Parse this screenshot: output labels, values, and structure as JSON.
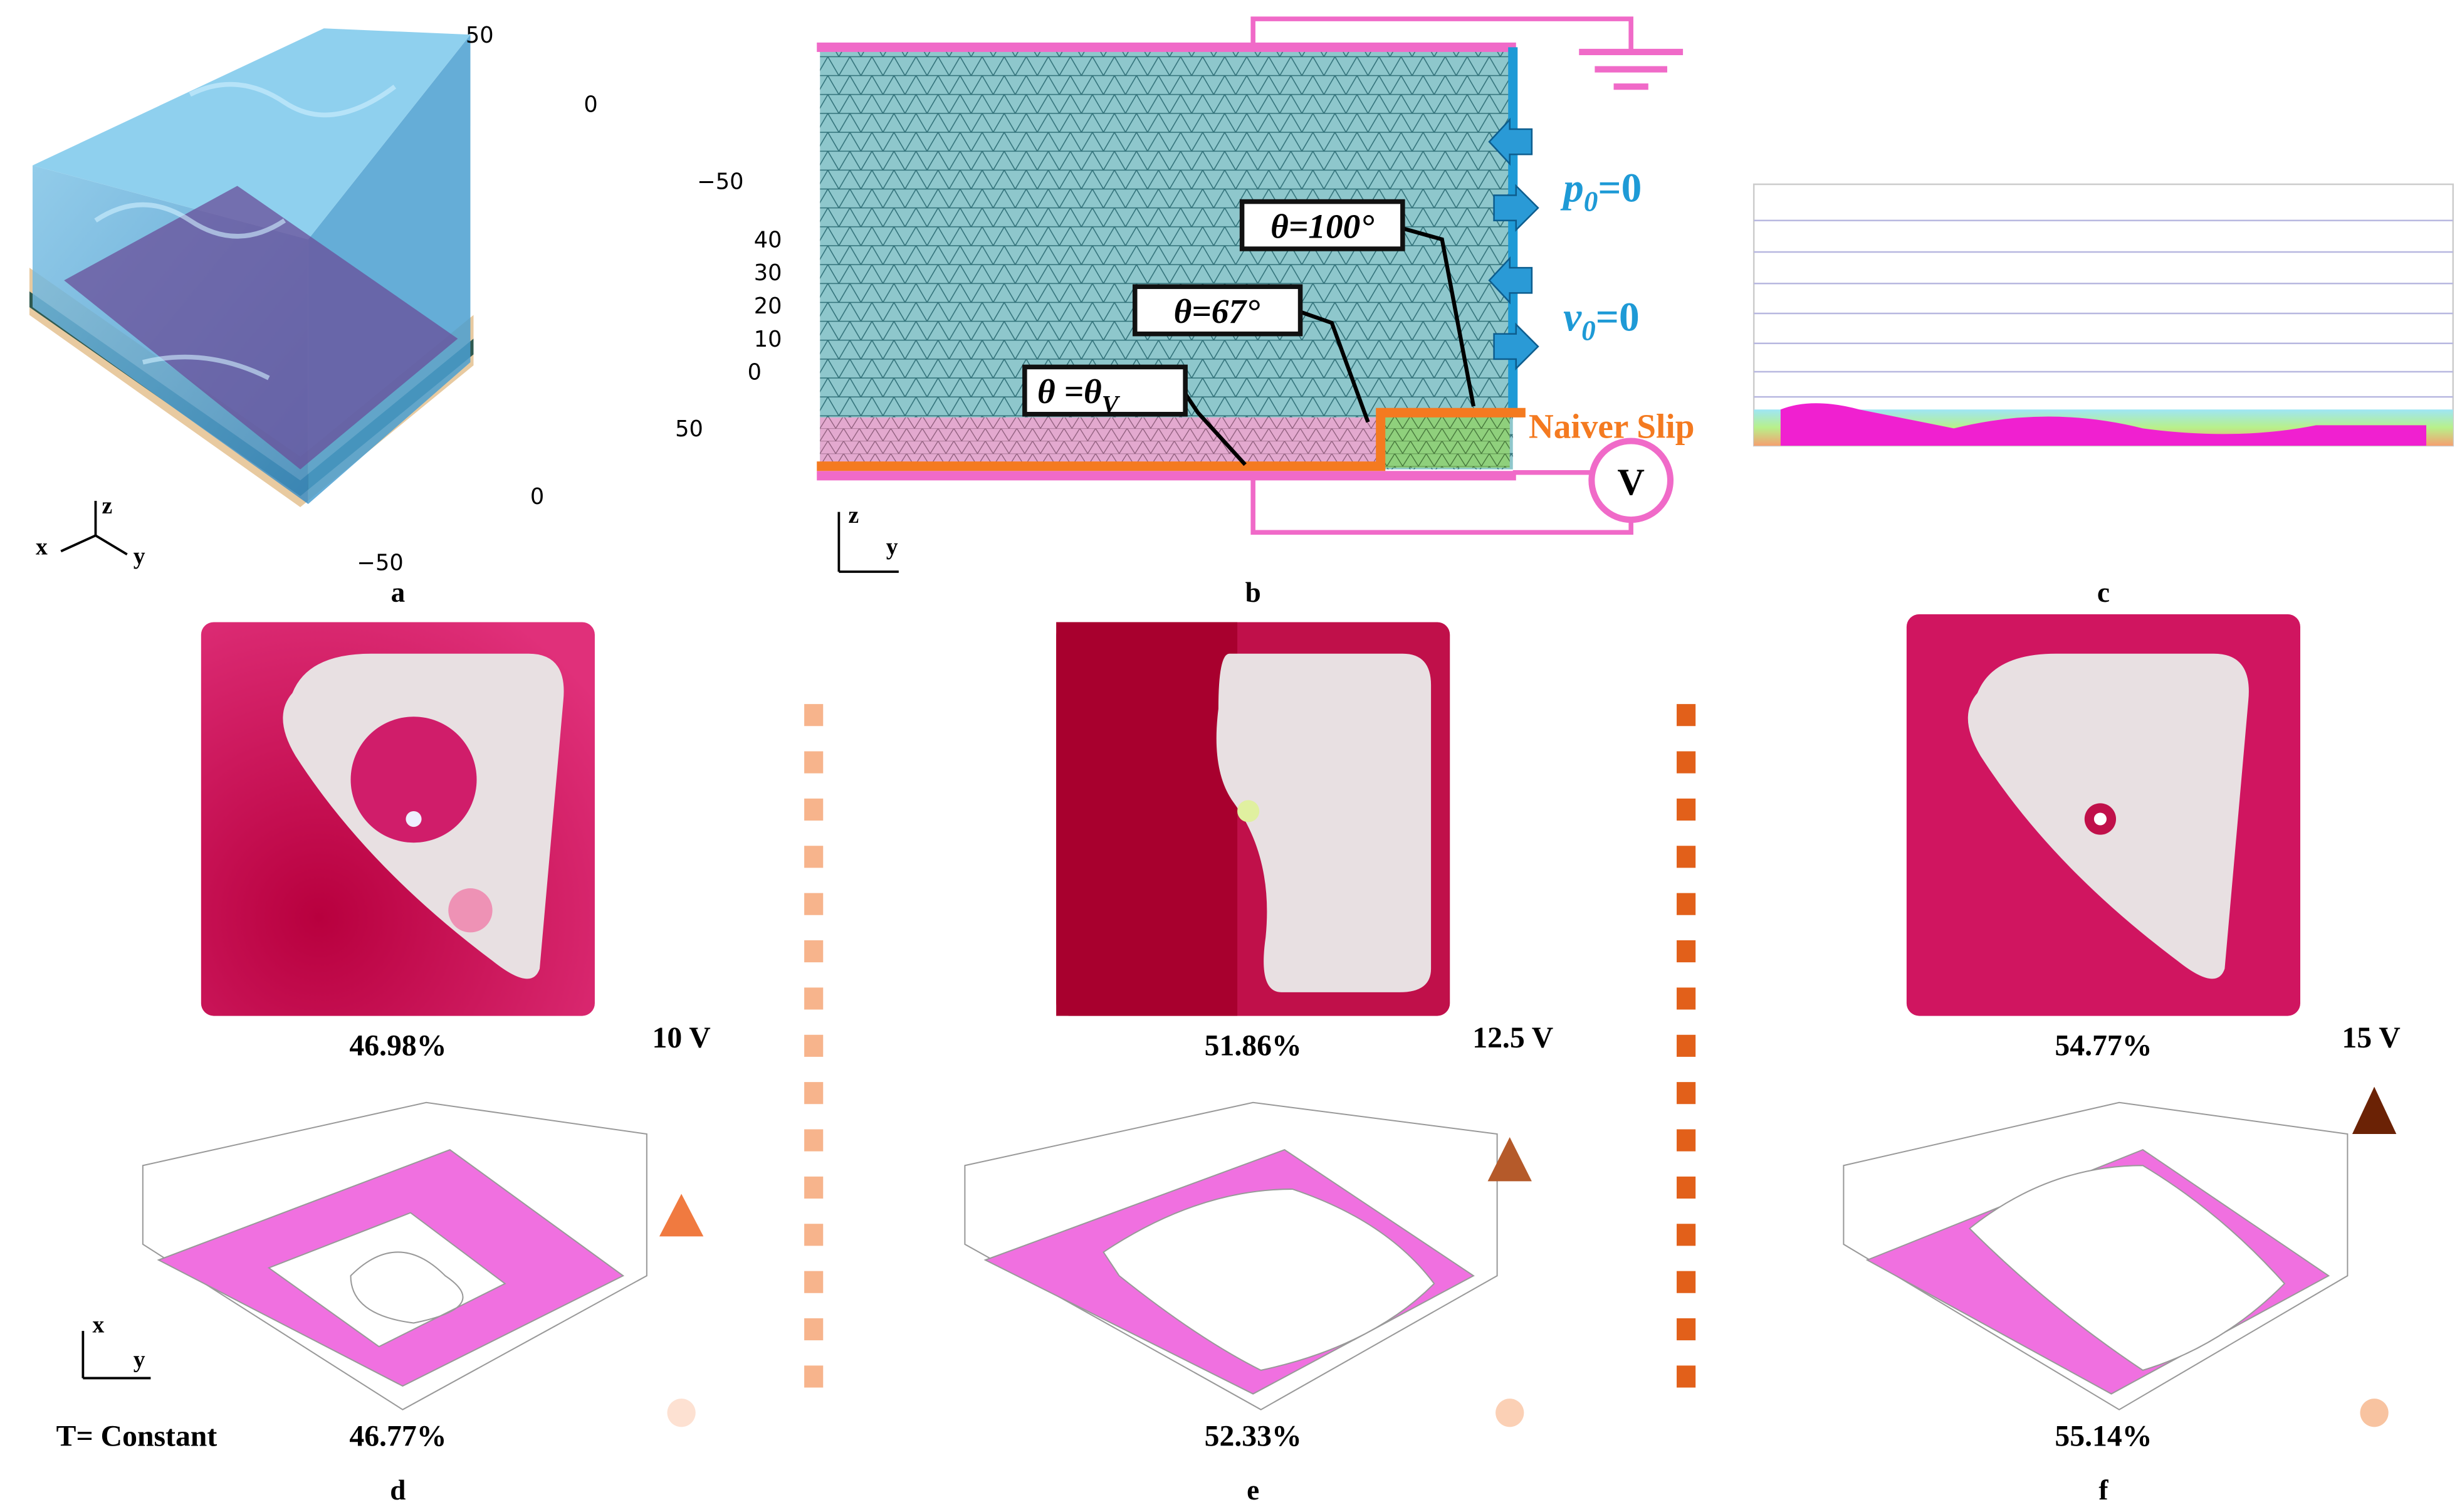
{
  "panel_a": {
    "label": "a",
    "ticks_top": [
      "50",
      "0",
      "−50"
    ],
    "ticks_z": [
      "40",
      "30",
      "20",
      "10",
      "0"
    ],
    "ticks_bottom": [
      "50",
      "0",
      "−50"
    ],
    "axes": [
      "x",
      "y",
      "z"
    ]
  },
  "panel_b": {
    "label": "b",
    "angle_right": "θ=100°",
    "angle_mid": "θ=67°",
    "angle_left": {
      "main": "θ =θ",
      "sub": "V"
    },
    "pressure": {
      "symbol": "p",
      "sub": "0",
      "rest": "=0"
    },
    "velocity": {
      "symbol": "v",
      "sub": "0",
      "rest": "=0"
    },
    "boundary": "Naiver Slip",
    "source": "V",
    "axes": [
      "z",
      "y"
    ]
  },
  "panel_c": {
    "label": "c"
  },
  "panels": [
    {
      "label": "d",
      "experiment": "46.98%",
      "voltage": "10 V",
      "simulation": "46.77%"
    },
    {
      "label": "e",
      "experiment": "51.86%",
      "voltage": "12.5 V",
      "simulation": "52.33%"
    },
    {
      "label": "f",
      "experiment": "54.77%",
      "voltage": "15 V",
      "simulation": "55.14%"
    }
  ],
  "condition": "T= Constant",
  "plane_axes": [
    "x",
    "y"
  ]
}
